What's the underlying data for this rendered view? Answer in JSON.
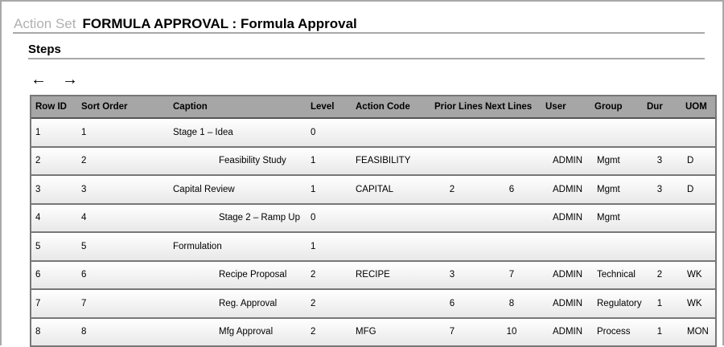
{
  "header": {
    "label": "Action Set",
    "value": "FORMULA APPROVAL : Formula Approval"
  },
  "section": {
    "title": "Steps"
  },
  "nav": {
    "back_icon": "←",
    "forward_icon": "→"
  },
  "table": {
    "columns": [
      "Row ID",
      "Sort Order",
      "Caption",
      "Level",
      "Action Code",
      "Prior Lines",
      "Next Lines",
      "User",
      "Group",
      "Dur",
      "UOM"
    ],
    "rows": [
      {
        "row_id": "1",
        "sort": "1",
        "caption": "Stage 1 – Idea",
        "indent": false,
        "level": "0",
        "code": "",
        "prior": "",
        "next": "",
        "user": "",
        "group": "",
        "dur": "",
        "uom": ""
      },
      {
        "row_id": "2",
        "sort": "2",
        "caption": "Feasibility Study",
        "indent": true,
        "level": "1",
        "code": "FEASIBILITY",
        "prior": "",
        "next": "",
        "user": "ADMIN",
        "group": "Mgmt",
        "dur": "3",
        "uom": "D"
      },
      {
        "row_id": "3",
        "sort": "3",
        "caption": "Capital Review",
        "indent": false,
        "level": "1",
        "code": "CAPITAL",
        "prior": "2",
        "next": "6",
        "user": "ADMIN",
        "group": "Mgmt",
        "dur": "3",
        "uom": "D"
      },
      {
        "row_id": "4",
        "sort": "4",
        "caption": "Stage 2 – Ramp Up",
        "indent": true,
        "level": "0",
        "code": "",
        "prior": "",
        "next": "",
        "user": "ADMIN",
        "group": "Mgmt",
        "dur": "",
        "uom": ""
      },
      {
        "row_id": "5",
        "sort": "5",
        "caption": "Formulation",
        "indent": false,
        "level": "1",
        "code": "",
        "prior": "",
        "next": "",
        "user": "",
        "group": "",
        "dur": "",
        "uom": ""
      },
      {
        "row_id": "6",
        "sort": "6",
        "caption": "Recipe Proposal",
        "indent": true,
        "level": "2",
        "code": "RECIPE",
        "prior": "3",
        "next": "7",
        "user": "ADMIN",
        "group": "Technical",
        "dur": "2",
        "uom": "WK"
      },
      {
        "row_id": "7",
        "sort": "7",
        "caption": "Reg. Approval",
        "indent": true,
        "level": "2",
        "code": "",
        "prior": "6",
        "next": "8",
        "user": "ADMIN",
        "group": "Regulatory",
        "dur": "1",
        "uom": "WK"
      },
      {
        "row_id": "8",
        "sort": "8",
        "caption": "Mfg Approval",
        "indent": true,
        "level": "2",
        "code": "MFG",
        "prior": "7",
        "next": "10",
        "user": "ADMIN",
        "group": "Process",
        "dur": "1",
        "uom": "MON"
      }
    ]
  }
}
